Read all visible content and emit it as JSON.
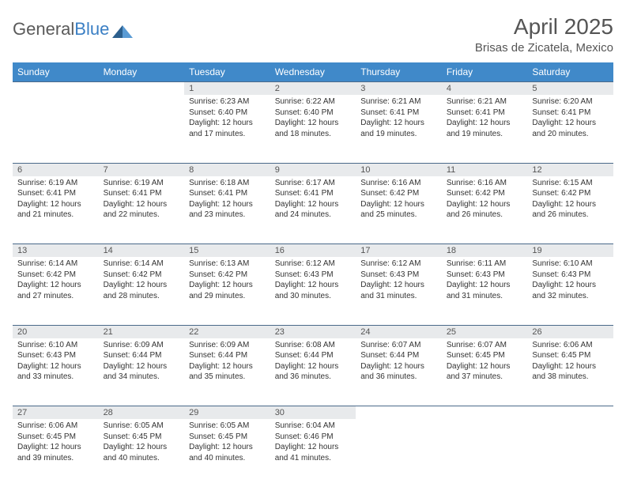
{
  "logo": {
    "text1": "General",
    "text2": "Blue"
  },
  "title": "April 2025",
  "location": "Brisas de Zicatela, Mexico",
  "colors": {
    "header_bg": "#4089c9",
    "header_text": "#ffffff",
    "daynum_bg": "#e8eaec",
    "border": "#4a6a8a",
    "body_text": "#333333",
    "title_text": "#555555"
  },
  "days": [
    "Sunday",
    "Monday",
    "Tuesday",
    "Wednesday",
    "Thursday",
    "Friday",
    "Saturday"
  ],
  "weeks": [
    [
      {
        "n": "",
        "lines": []
      },
      {
        "n": "",
        "lines": []
      },
      {
        "n": "1",
        "lines": [
          "Sunrise: 6:23 AM",
          "Sunset: 6:40 PM",
          "Daylight: 12 hours",
          "and 17 minutes."
        ]
      },
      {
        "n": "2",
        "lines": [
          "Sunrise: 6:22 AM",
          "Sunset: 6:40 PM",
          "Daylight: 12 hours",
          "and 18 minutes."
        ]
      },
      {
        "n": "3",
        "lines": [
          "Sunrise: 6:21 AM",
          "Sunset: 6:41 PM",
          "Daylight: 12 hours",
          "and 19 minutes."
        ]
      },
      {
        "n": "4",
        "lines": [
          "Sunrise: 6:21 AM",
          "Sunset: 6:41 PM",
          "Daylight: 12 hours",
          "and 19 minutes."
        ]
      },
      {
        "n": "5",
        "lines": [
          "Sunrise: 6:20 AM",
          "Sunset: 6:41 PM",
          "Daylight: 12 hours",
          "and 20 minutes."
        ]
      }
    ],
    [
      {
        "n": "6",
        "lines": [
          "Sunrise: 6:19 AM",
          "Sunset: 6:41 PM",
          "Daylight: 12 hours",
          "and 21 minutes."
        ]
      },
      {
        "n": "7",
        "lines": [
          "Sunrise: 6:19 AM",
          "Sunset: 6:41 PM",
          "Daylight: 12 hours",
          "and 22 minutes."
        ]
      },
      {
        "n": "8",
        "lines": [
          "Sunrise: 6:18 AM",
          "Sunset: 6:41 PM",
          "Daylight: 12 hours",
          "and 23 minutes."
        ]
      },
      {
        "n": "9",
        "lines": [
          "Sunrise: 6:17 AM",
          "Sunset: 6:41 PM",
          "Daylight: 12 hours",
          "and 24 minutes."
        ]
      },
      {
        "n": "10",
        "lines": [
          "Sunrise: 6:16 AM",
          "Sunset: 6:42 PM",
          "Daylight: 12 hours",
          "and 25 minutes."
        ]
      },
      {
        "n": "11",
        "lines": [
          "Sunrise: 6:16 AM",
          "Sunset: 6:42 PM",
          "Daylight: 12 hours",
          "and 26 minutes."
        ]
      },
      {
        "n": "12",
        "lines": [
          "Sunrise: 6:15 AM",
          "Sunset: 6:42 PM",
          "Daylight: 12 hours",
          "and 26 minutes."
        ]
      }
    ],
    [
      {
        "n": "13",
        "lines": [
          "Sunrise: 6:14 AM",
          "Sunset: 6:42 PM",
          "Daylight: 12 hours",
          "and 27 minutes."
        ]
      },
      {
        "n": "14",
        "lines": [
          "Sunrise: 6:14 AM",
          "Sunset: 6:42 PM",
          "Daylight: 12 hours",
          "and 28 minutes."
        ]
      },
      {
        "n": "15",
        "lines": [
          "Sunrise: 6:13 AM",
          "Sunset: 6:42 PM",
          "Daylight: 12 hours",
          "and 29 minutes."
        ]
      },
      {
        "n": "16",
        "lines": [
          "Sunrise: 6:12 AM",
          "Sunset: 6:43 PM",
          "Daylight: 12 hours",
          "and 30 minutes."
        ]
      },
      {
        "n": "17",
        "lines": [
          "Sunrise: 6:12 AM",
          "Sunset: 6:43 PM",
          "Daylight: 12 hours",
          "and 31 minutes."
        ]
      },
      {
        "n": "18",
        "lines": [
          "Sunrise: 6:11 AM",
          "Sunset: 6:43 PM",
          "Daylight: 12 hours",
          "and 31 minutes."
        ]
      },
      {
        "n": "19",
        "lines": [
          "Sunrise: 6:10 AM",
          "Sunset: 6:43 PM",
          "Daylight: 12 hours",
          "and 32 minutes."
        ]
      }
    ],
    [
      {
        "n": "20",
        "lines": [
          "Sunrise: 6:10 AM",
          "Sunset: 6:43 PM",
          "Daylight: 12 hours",
          "and 33 minutes."
        ]
      },
      {
        "n": "21",
        "lines": [
          "Sunrise: 6:09 AM",
          "Sunset: 6:44 PM",
          "Daylight: 12 hours",
          "and 34 minutes."
        ]
      },
      {
        "n": "22",
        "lines": [
          "Sunrise: 6:09 AM",
          "Sunset: 6:44 PM",
          "Daylight: 12 hours",
          "and 35 minutes."
        ]
      },
      {
        "n": "23",
        "lines": [
          "Sunrise: 6:08 AM",
          "Sunset: 6:44 PM",
          "Daylight: 12 hours",
          "and 36 minutes."
        ]
      },
      {
        "n": "24",
        "lines": [
          "Sunrise: 6:07 AM",
          "Sunset: 6:44 PM",
          "Daylight: 12 hours",
          "and 36 minutes."
        ]
      },
      {
        "n": "25",
        "lines": [
          "Sunrise: 6:07 AM",
          "Sunset: 6:45 PM",
          "Daylight: 12 hours",
          "and 37 minutes."
        ]
      },
      {
        "n": "26",
        "lines": [
          "Sunrise: 6:06 AM",
          "Sunset: 6:45 PM",
          "Daylight: 12 hours",
          "and 38 minutes."
        ]
      }
    ],
    [
      {
        "n": "27",
        "lines": [
          "Sunrise: 6:06 AM",
          "Sunset: 6:45 PM",
          "Daylight: 12 hours",
          "and 39 minutes."
        ]
      },
      {
        "n": "28",
        "lines": [
          "Sunrise: 6:05 AM",
          "Sunset: 6:45 PM",
          "Daylight: 12 hours",
          "and 40 minutes."
        ]
      },
      {
        "n": "29",
        "lines": [
          "Sunrise: 6:05 AM",
          "Sunset: 6:45 PM",
          "Daylight: 12 hours",
          "and 40 minutes."
        ]
      },
      {
        "n": "30",
        "lines": [
          "Sunrise: 6:04 AM",
          "Sunset: 6:46 PM",
          "Daylight: 12 hours",
          "and 41 minutes."
        ]
      },
      {
        "n": "",
        "lines": []
      },
      {
        "n": "",
        "lines": []
      },
      {
        "n": "",
        "lines": []
      }
    ]
  ]
}
